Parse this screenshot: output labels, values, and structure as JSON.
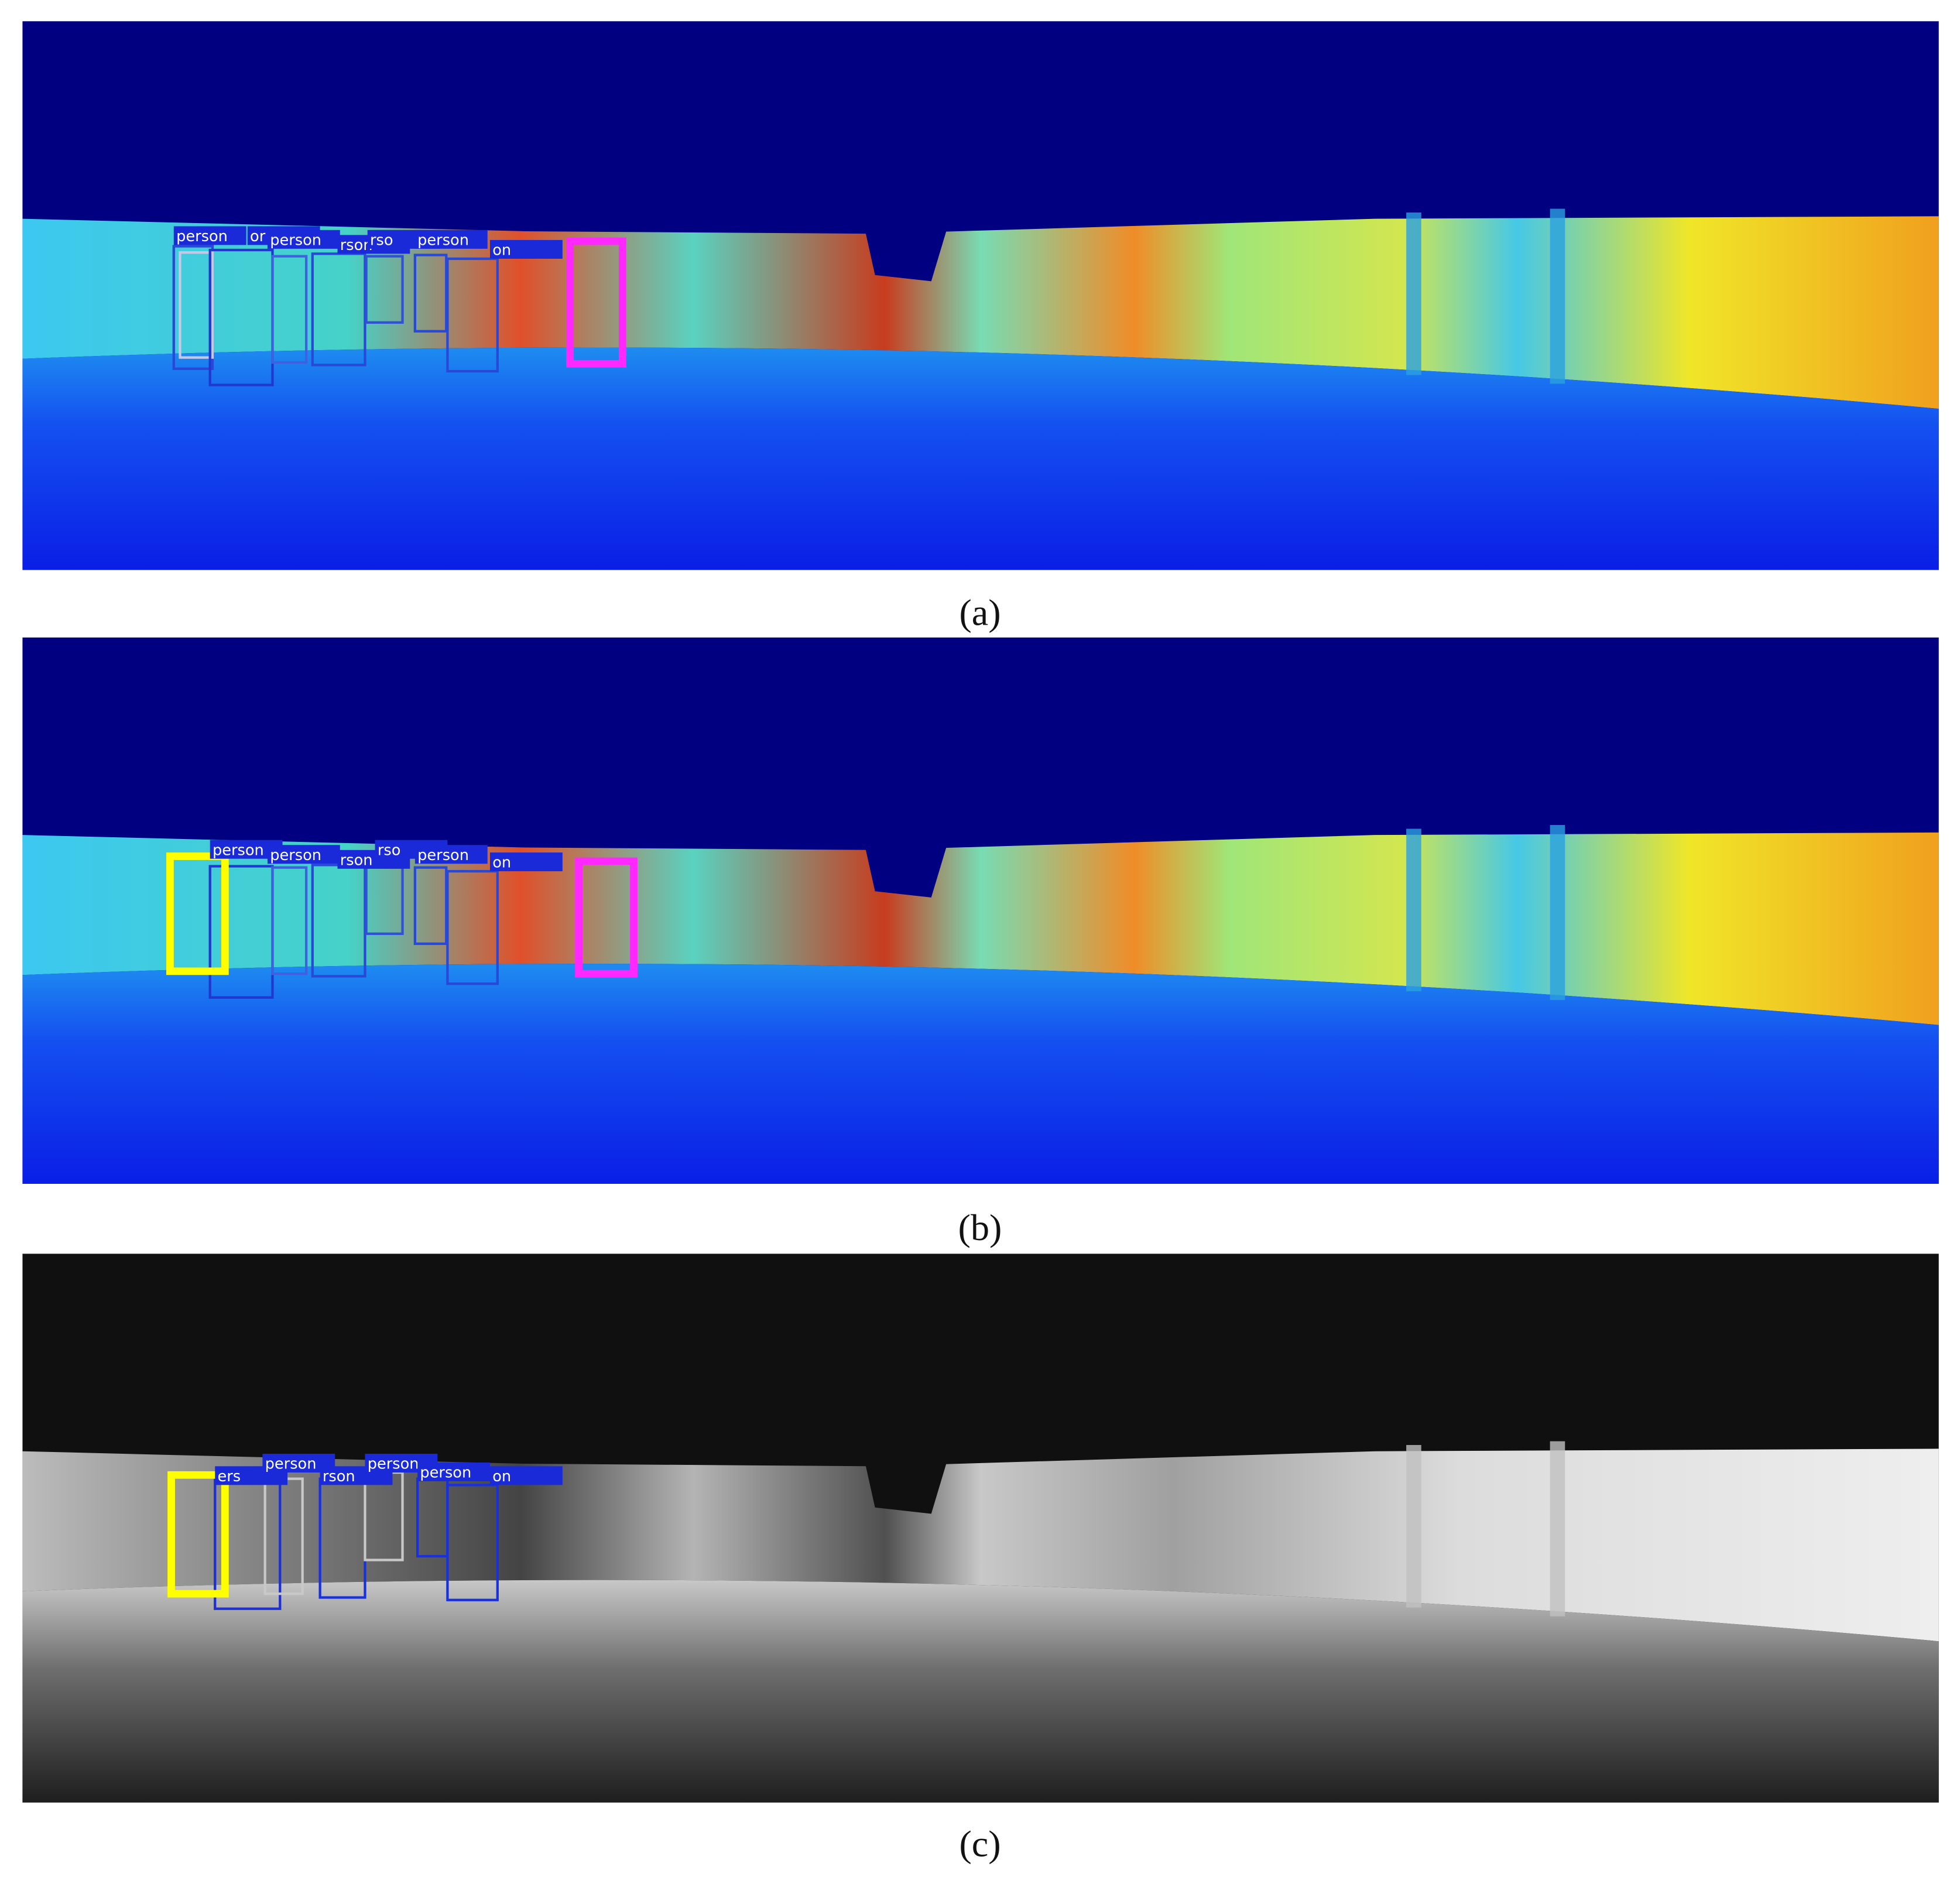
{
  "panels": [
    {
      "caption": "(a)",
      "labels": [
        "person",
        "or",
        "person",
        "rson",
        "rso",
        "person",
        "on"
      ]
    },
    {
      "caption": "(b)",
      "labels": [
        "person",
        "person",
        "rson",
        "rso",
        "person",
        "on"
      ]
    },
    {
      "caption": "(c)",
      "labels": [
        "ers",
        "person",
        "rson",
        "person",
        "person",
        "on"
      ]
    }
  ]
}
